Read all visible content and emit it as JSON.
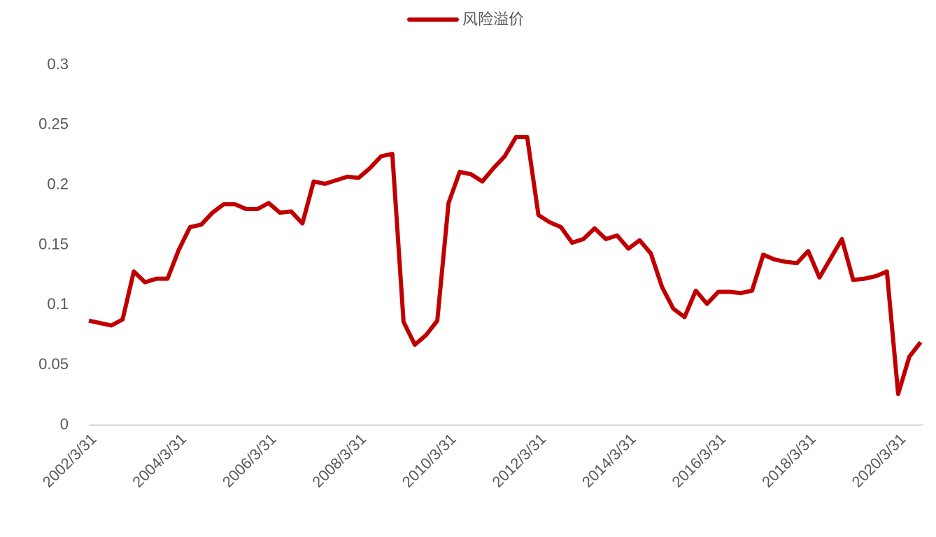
{
  "chart_data": {
    "type": "line",
    "categories": [
      "2002/3/31",
      null,
      null,
      null,
      null,
      null,
      null,
      null,
      "2004/3/31",
      null,
      null,
      null,
      null,
      null,
      null,
      null,
      "2006/3/31",
      null,
      null,
      null,
      null,
      null,
      null,
      null,
      "2008/3/31",
      null,
      null,
      null,
      null,
      null,
      null,
      null,
      "2010/3/31",
      null,
      null,
      null,
      null,
      null,
      null,
      null,
      "2012/3/31",
      null,
      null,
      null,
      null,
      null,
      null,
      null,
      "2014/3/31",
      null,
      null,
      null,
      null,
      null,
      null,
      null,
      "2016/3/31",
      null,
      null,
      null,
      null,
      null,
      null,
      null,
      "2018/3/31",
      null,
      null,
      null,
      null,
      null,
      null,
      null,
      "2020/3/31",
      null,
      null
    ],
    "series": [
      {
        "name": "风险溢价",
        "color": "#c00000",
        "values": [
          0.087,
          0.085,
          0.083,
          0.088,
          0.128,
          0.119,
          0.122,
          0.122,
          0.146,
          0.165,
          0.167,
          0.177,
          0.184,
          0.184,
          0.18,
          0.18,
          0.185,
          0.177,
          0.178,
          0.168,
          0.203,
          0.201,
          0.204,
          0.207,
          0.206,
          0.214,
          0.224,
          0.226,
          0.086,
          0.067,
          0.075,
          0.087,
          0.185,
          0.211,
          0.209,
          0.203,
          0.214,
          0.224,
          0.24,
          0.24,
          0.175,
          0.169,
          0.165,
          0.152,
          0.155,
          0.164,
          0.155,
          0.158,
          0.147,
          0.154,
          0.143,
          0.115,
          0.097,
          0.09,
          0.112,
          0.101,
          0.111,
          0.111,
          0.11,
          0.112,
          0.142,
          0.138,
          0.136,
          0.135,
          0.145,
          0.123,
          0.139,
          0.155,
          0.121,
          0.122,
          0.124,
          0.128,
          0.026,
          0.057,
          0.069
        ]
      }
    ],
    "ylim": [
      0,
      0.3
    ],
    "yticks": [
      0,
      0.05,
      0.1,
      0.15,
      0.2,
      0.25,
      0.3
    ],
    "grid": false,
    "legend": "top"
  }
}
